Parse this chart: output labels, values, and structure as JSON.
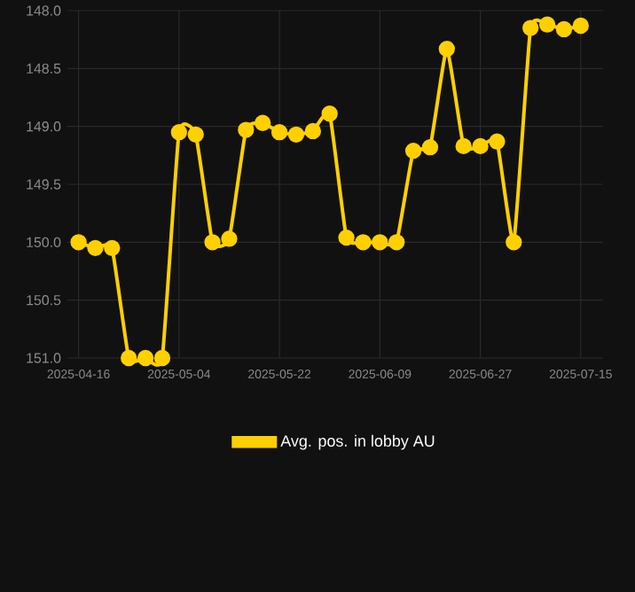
{
  "chart_data": {
    "type": "line",
    "x": [
      "2025-04-16",
      "2025-04-19",
      "2025-04-22",
      "2025-04-25",
      "2025-04-28",
      "2025-05-01",
      "2025-05-04",
      "2025-05-07",
      "2025-05-10",
      "2025-05-13",
      "2025-05-16",
      "2025-05-19",
      "2025-05-22",
      "2025-05-25",
      "2025-05-28",
      "2025-05-31",
      "2025-06-03",
      "2025-06-06",
      "2025-06-09",
      "2025-06-12",
      "2025-06-15",
      "2025-06-18",
      "2025-06-21",
      "2025-06-24",
      "2025-06-27",
      "2025-06-30",
      "2025-07-03",
      "2025-07-06",
      "2025-07-09",
      "2025-07-12",
      "2025-07-15"
    ],
    "series": [
      {
        "name": "Avg. pos. in lobby AU",
        "color": "#ffd000",
        "values": [
          150.0,
          150.05,
          150.05,
          151.0,
          151.0,
          151.0,
          149.05,
          149.07,
          150.0,
          149.97,
          149.03,
          148.97,
          149.05,
          149.07,
          149.04,
          148.89,
          149.96,
          150.0,
          150.0,
          150.0,
          149.21,
          149.18,
          148.33,
          149.17,
          149.17,
          149.13,
          150.0,
          148.15,
          148.12,
          148.16,
          148.13
        ]
      }
    ],
    "xlim": [
      "2025-04-14",
      "2025-07-19"
    ],
    "xticks": [
      "2025-04-16",
      "2025-05-04",
      "2025-05-22",
      "2025-06-09",
      "2025-06-27",
      "2025-07-15"
    ],
    "ylim": [
      151.0,
      148.0
    ],
    "yticks": [
      {
        "value": 148.0,
        "label": "148.0"
      },
      148.5,
      {
        "value": 149.0,
        "label": "149.0"
      },
      149.5,
      {
        "value": 150.0,
        "label": "150.0"
      },
      150.5,
      {
        "value": 151.0,
        "label": "151.0"
      }
    ],
    "grid": true,
    "legend": "bottom",
    "marker": "circle",
    "line_style": "solid"
  }
}
